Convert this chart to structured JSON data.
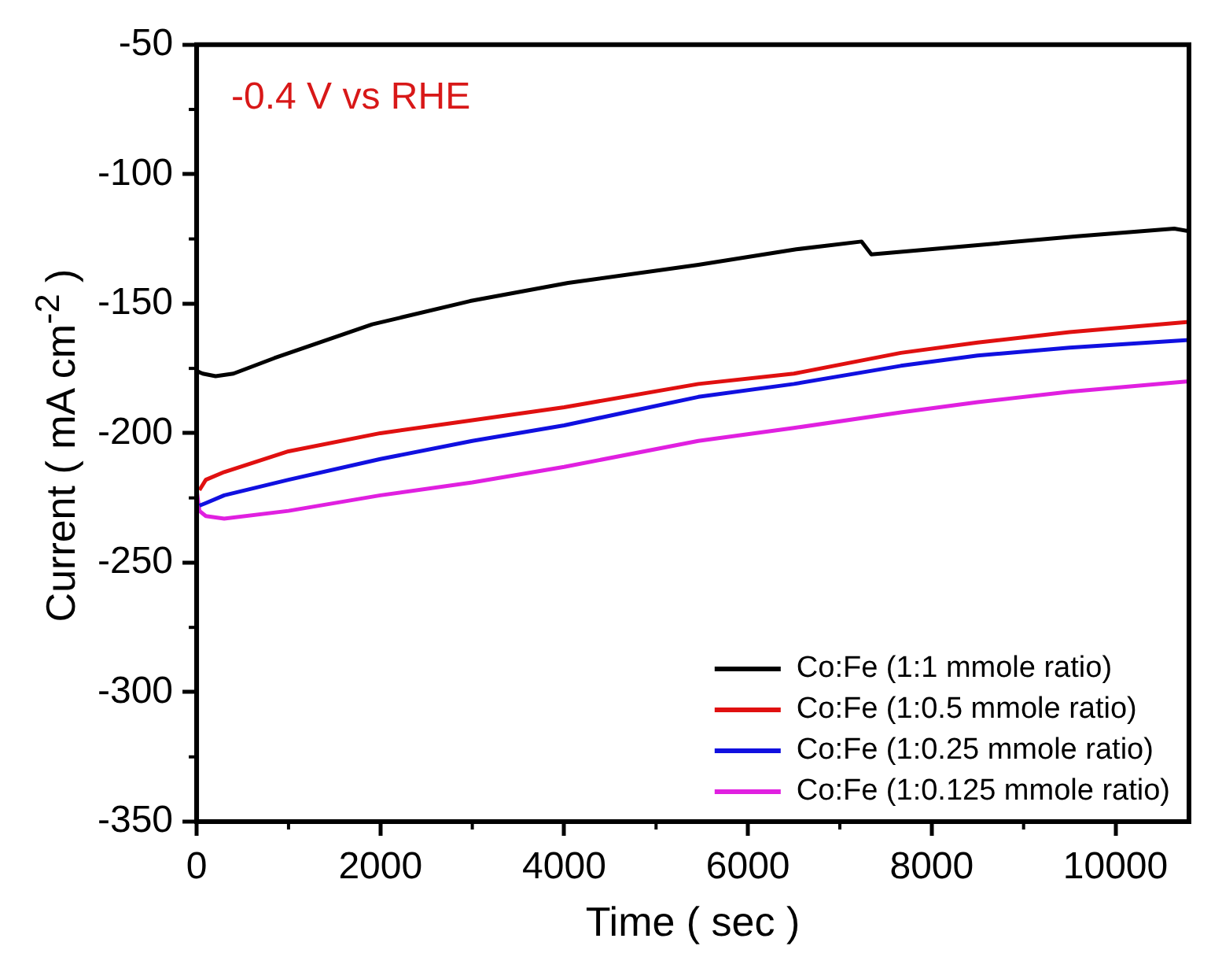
{
  "chart_data": {
    "type": "line",
    "xlabel": "Time ( sec )",
    "ylabel": "Current ( mA cm$^{-2}$ )",
    "annotations": [
      "-0.4 V vs RHE"
    ],
    "xlim": [
      0,
      10800
    ],
    "xticks": [
      0,
      2000,
      4000,
      6000,
      8000,
      10000
    ],
    "ylim": [
      -350,
      -50
    ],
    "yticks": [
      -350,
      -300,
      -250,
      -200,
      -150,
      -100,
      -50
    ],
    "grid": false,
    "legend": "bottom right",
    "marker": "none",
    "line_style": "solid",
    "series": [
      {
        "name": "Co:Fe (1:1 mmole ratio)",
        "color": "#000000",
        "x": [
          0,
          66,
          206,
          400,
          847,
          1911,
          2975,
          4042,
          5460,
          6526,
          7237,
          7343,
          8303,
          9580,
          10640,
          10800
        ],
        "values": [
          -176,
          -177,
          -178,
          -177,
          -171,
          -158,
          -149,
          -142,
          -135,
          -129,
          -126,
          -131,
          -128,
          -124,
          -121,
          -122
        ]
      },
      {
        "name": "Co:Fe (1:0.5 mmole ratio)",
        "color": "#e01010",
        "x": [
          30,
          100,
          300,
          1000,
          2000,
          3000,
          4000,
          5460,
          6500,
          7664,
          8500,
          9500,
          10800
        ],
        "values": [
          -222,
          -218,
          -215,
          -207,
          -200,
          -195,
          -190,
          -181,
          -177,
          -169,
          -165,
          -161,
          -157
        ]
      },
      {
        "name": "Co:Fe (1:0.25 mmole ratio)",
        "color": "#1010e0",
        "x": [
          30,
          100,
          300,
          1000,
          2000,
          3000,
          4000,
          5460,
          6500,
          7664,
          8500,
          9500,
          10800
        ],
        "values": [
          -228,
          -227,
          -224,
          -218,
          -210,
          -203,
          -197,
          -186,
          -181,
          -174,
          -170,
          -167,
          -164
        ]
      },
      {
        "name": "Co:Fe (1:0.125 mmole ratio)",
        "color": "#e020e0",
        "x": [
          0,
          30,
          100,
          300,
          1000,
          2000,
          3000,
          4000,
          5460,
          6500,
          7664,
          8500,
          9500,
          10800
        ],
        "values": [
          -222,
          -230,
          -232,
          -233,
          -230,
          -224,
          -219,
          -213,
          -203,
          -198,
          -192,
          -188,
          -184,
          -180
        ]
      }
    ]
  }
}
